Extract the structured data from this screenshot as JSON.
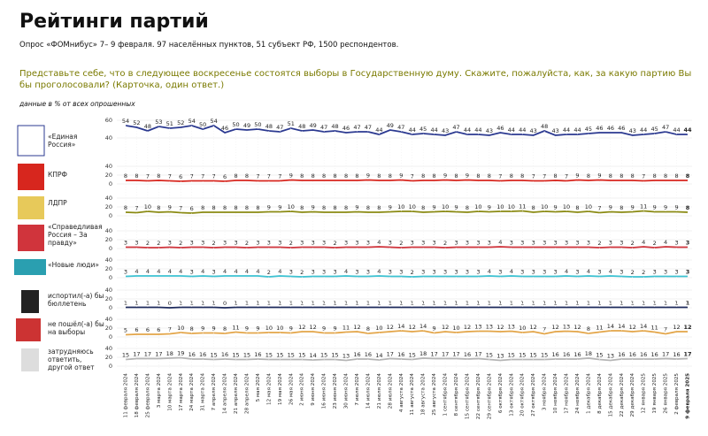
{
  "chart_data": {
    "type": "line",
    "title": "Рейтинги партий",
    "subtitle": "Опрос «ФОМнибус» 7– 9 февраля. 97 населённых пунктов, 51 субъект РФ, 1500 респондентов.",
    "question": "Представьте себе, что в следующее воскресенье состоятся выборы в Государственную думу. Скажите, пожалуйста, как, за какую партию Вы бы проголосовали? (Карточка, один ответ.)",
    "note": "данные в % от всех опрошенных",
    "x": [
      "11 февраля 2024",
      "18 февраля 2024",
      "25 февраля 2024",
      "3 марта 2024",
      "10 марта 2024",
      "17 марта 2024",
      "24 марта 2024",
      "31 марта 2024",
      "7 апреля 2024",
      "14 апреля 2024",
      "21 апреля 2024",
      "28 апреля 2024",
      "5 мая 2024",
      "12 мая 2024",
      "19 мая 2024",
      "26 мая 2024",
      "2 июня 2024",
      "9 июня 2024",
      "16 июня 2024",
      "23 июня 2024",
      "30 июня 2024",
      "7 июля 2024",
      "14 июля 2024",
      "21 июля 2024",
      "28 июля 2024",
      "4 августа 2024",
      "11 августа 2024",
      "18 августа 2024",
      "25 августа 2024",
      "1 сентября 2024",
      "8 сентября 2024",
      "15 сентября 2024",
      "22 сентября 2024",
      "29 сентября 2024",
      "6 октября 2024",
      "13 октября 2024",
      "20 октября 2024",
      "27 октября 2024",
      "3 ноября 2024",
      "10 ноября 2024",
      "17 ноября 2024",
      "24 ноября 2024",
      "1 декабря 2024",
      "8 декабря 2024",
      "15 декабря 2024",
      "22 декабря 2024",
      "29 декабря 2024",
      "12 января 2025",
      "19 января 2025",
      "26 января 2025",
      "2 февраля 2025",
      "9 февраля 2025"
    ],
    "series": [
      {
        "name": "«Единая Россия»",
        "color": "#2b3990",
        "ylim": [
          40,
          60
        ],
        "yticks": [
          40,
          60
        ],
        "values": [
          54,
          52,
          48,
          53,
          51,
          52,
          54,
          50,
          54,
          46,
          50,
          49,
          50,
          48,
          47,
          51,
          48,
          49,
          47,
          48,
          46,
          47,
          47,
          44,
          49,
          47,
          44,
          45,
          44,
          43,
          47,
          44,
          44,
          43,
          46,
          44,
          44,
          43,
          48,
          43,
          44,
          44,
          45,
          46,
          46,
          46,
          43,
          44,
          45,
          47,
          44,
          44
        ]
      },
      {
        "name": "КПРФ",
        "color": "#d7261e",
        "ylim": [
          0,
          40
        ],
        "yticks": [
          0,
          20,
          40
        ],
        "values": [
          8,
          8,
          7,
          8,
          7,
          6,
          7,
          7,
          7,
          6,
          8,
          8,
          7,
          7,
          7,
          9,
          8,
          8,
          8,
          8,
          8,
          8,
          9,
          8,
          8,
          9,
          7,
          8,
          8,
          9,
          8,
          9,
          8,
          8,
          7,
          8,
          8,
          7,
          7,
          8,
          7,
          9,
          8,
          9,
          8,
          8,
          8,
          7,
          8,
          8,
          8,
          8
        ]
      },
      {
        "name": "ЛДПР",
        "color": "#8a8a12",
        "ylim": [
          0,
          40
        ],
        "yticks": [
          0,
          20,
          40
        ],
        "values": [
          8,
          7,
          10,
          8,
          9,
          7,
          6,
          8,
          8,
          8,
          8,
          8,
          8,
          9,
          9,
          10,
          8,
          9,
          8,
          8,
          8,
          9,
          8,
          8,
          9,
          10,
          10,
          8,
          9,
          10,
          9,
          8,
          10,
          9,
          10,
          10,
          11,
          8,
          10,
          9,
          10,
          8,
          10,
          7,
          9,
          8,
          9,
          11,
          9,
          9,
          9,
          8
        ]
      },
      {
        "name": "«Справедливая Россия – За правду»",
        "color": "#d0343c",
        "ylim": [
          0,
          40
        ],
        "yticks": [
          0,
          20,
          40
        ],
        "values": [
          3,
          3,
          2,
          2,
          3,
          2,
          3,
          3,
          2,
          3,
          3,
          2,
          3,
          3,
          3,
          2,
          3,
          3,
          3,
          2,
          3,
          3,
          3,
          4,
          3,
          2,
          3,
          3,
          3,
          2,
          3,
          3,
          3,
          3,
          4,
          3,
          3,
          3,
          3,
          3,
          3,
          3,
          3,
          2,
          3,
          3,
          2,
          4,
          2,
          4,
          3,
          3
        ]
      },
      {
        "name": "«Новые люди»",
        "color": "#3cc2d2",
        "ylim": [
          0,
          40
        ],
        "yticks": [
          0,
          20,
          40
        ],
        "values": [
          3,
          4,
          4,
          4,
          4,
          4,
          3,
          4,
          3,
          4,
          4,
          4,
          4,
          2,
          4,
          3,
          2,
          3,
          3,
          3,
          4,
          3,
          3,
          4,
          3,
          3,
          2,
          3,
          3,
          3,
          3,
          3,
          3,
          4,
          3,
          4,
          3,
          3,
          3,
          3,
          4,
          3,
          4,
          3,
          4,
          3,
          2,
          2,
          3,
          3,
          3,
          3
        ]
      },
      {
        "name": "испортил(-а) бы бюллетень",
        "color": "#1d2a5c",
        "ylim": [
          0,
          40
        ],
        "yticks": [
          0,
          20,
          40
        ],
        "values": [
          1,
          1,
          1,
          1,
          0,
          1,
          1,
          1,
          1,
          0,
          1,
          1,
          1,
          1,
          1,
          1,
          1,
          1,
          1,
          1,
          1,
          1,
          1,
          1,
          1,
          1,
          1,
          1,
          1,
          1,
          1,
          1,
          1,
          1,
          1,
          1,
          1,
          1,
          1,
          1,
          1,
          1,
          1,
          1,
          1,
          1,
          1,
          1,
          1,
          1,
          1,
          1
        ]
      },
      {
        "name": "не пошёл(-а) бы на выборы",
        "color": "#e3a548",
        "ylim": [
          0,
          40
        ],
        "yticks": [
          0,
          20,
          40
        ],
        "values": [
          5,
          6,
          6,
          6,
          7,
          10,
          8,
          9,
          9,
          8,
          11,
          9,
          9,
          10,
          10,
          9,
          12,
          12,
          9,
          9,
          11,
          12,
          8,
          10,
          12,
          14,
          12,
          14,
          9,
          12,
          10,
          12,
          13,
          13,
          12,
          13,
          10,
          12,
          7,
          12,
          13,
          12,
          8,
          11,
          14,
          14,
          12,
          14,
          11,
          7,
          12,
          12
        ]
      },
      {
        "name": "затрудняюсь ответить, другой ответ",
        "color": "#b5b5b5",
        "ylim": [
          0,
          40
        ],
        "yticks": [
          0,
          20,
          40
        ],
        "values": [
          15,
          17,
          17,
          17,
          18,
          19,
          16,
          16,
          15,
          16,
          15,
          15,
          16,
          15,
          15,
          15,
          15,
          14,
          15,
          15,
          13,
          16,
          16,
          14,
          17,
          16,
          15,
          18,
          17,
          17,
          17,
          16,
          17,
          15,
          13,
          15,
          15,
          15,
          15,
          16,
          16,
          16,
          18,
          15,
          13,
          16,
          16,
          16,
          16,
          17,
          16,
          17
        ]
      }
    ]
  }
}
